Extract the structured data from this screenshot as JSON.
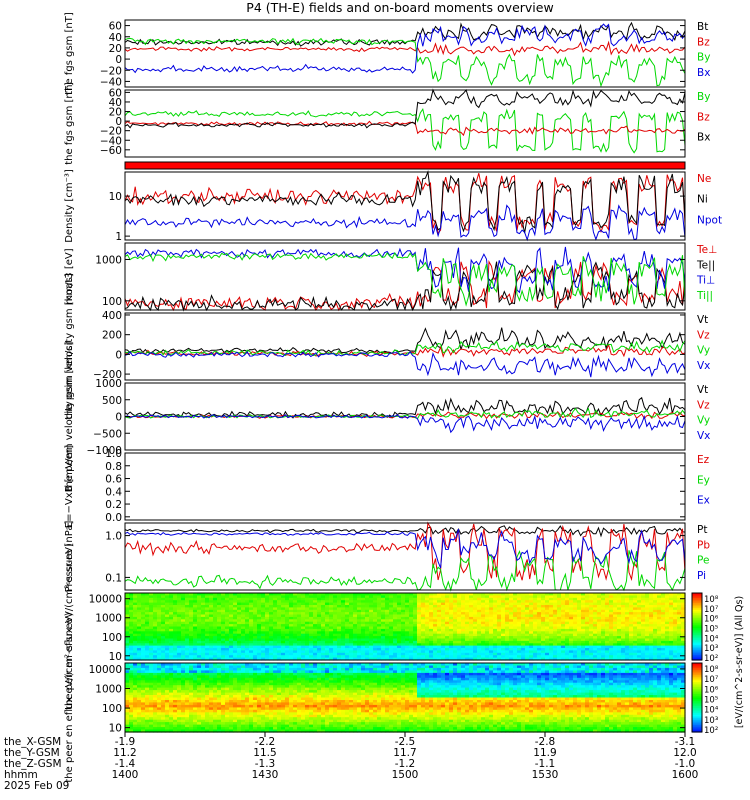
{
  "title": "P4 (TH-E) fields and on-board moments overview",
  "footer": {
    "row_labels": [
      "the_X-GSM",
      "the_Y-GSM",
      "the_Z-GSM",
      "hhmm",
      "2025 Feb 09"
    ],
    "columns": [
      {
        "x": "-1.9",
        "y": "11.2",
        "z": "-1.4",
        "t": "1400"
      },
      {
        "x": "-2.2",
        "y": "11.5",
        "z": "-1.3",
        "t": "1430"
      },
      {
        "x": "-2.5",
        "y": "11.7",
        "z": "-1.2",
        "t": "1500"
      },
      {
        "x": "-2.8",
        "y": "11.9",
        "z": "-1.1",
        "t": "1530"
      },
      {
        "x": "-3.1",
        "y": "12.0",
        "z": "-1.0",
        "t": "1600"
      }
    ]
  },
  "colorbar": {
    "label": "[eV/(cm^2-s-sr-eV)] (All Qs)",
    "ticks_top": [
      "10⁸",
      "10⁷",
      "10⁶",
      "10⁵",
      "10⁴",
      "10³",
      "10²"
    ],
    "ticks_bottom": [
      "10⁸",
      "10⁷",
      "10⁶",
      "10⁵",
      "10⁴",
      "10³",
      "10²"
    ]
  },
  "colors": {
    "black": "#000000",
    "red": "#e00000",
    "green": "#00d800",
    "blue": "#0000e0"
  },
  "chart_data": [
    {
      "type": "line",
      "ylabel": "the fgs gsm [nT]",
      "ylim": [
        -50,
        70
      ],
      "ticks": [
        {
          "v": 60,
          "t": "60"
        },
        {
          "v": 40,
          "t": "40"
        },
        {
          "v": 20,
          "t": "20"
        },
        {
          "v": 0,
          "t": "0"
        },
        {
          "v": -20,
          "t": "−20"
        },
        {
          "v": -40,
          "t": "−40"
        }
      ],
      "series": [
        {
          "name": "Bt",
          "color": "#000000",
          "base": 30,
          "noise": 4,
          "burstBase": 45,
          "burstAlt": 55,
          "burstNoise": 8
        },
        {
          "name": "Bz",
          "color": "#e00000",
          "base": 18,
          "noise": 3,
          "burstBase": 15,
          "burstAlt": 20,
          "burstNoise": 6
        },
        {
          "name": "By",
          "color": "#00d800",
          "base": 32,
          "noise": 4,
          "burstBase": -5,
          "burstAlt": -35,
          "burstNoise": 10
        },
        {
          "name": "Bx",
          "color": "#0000e0",
          "base": -18,
          "noise": 5,
          "burstBase": 35,
          "burstAlt": 50,
          "burstNoise": 10
        }
      ]
    },
    {
      "type": "line",
      "ylabel": "the fgs gsm [nT]",
      "ylim": [
        -75,
        65
      ],
      "ticks": [
        {
          "v": 60,
          "t": "60"
        },
        {
          "v": 40,
          "t": "40"
        },
        {
          "v": 20,
          "t": "20"
        },
        {
          "v": 0,
          "t": "0"
        },
        {
          "v": -20,
          "t": "−20"
        },
        {
          "v": -40,
          "t": "−40"
        },
        {
          "v": -60,
          "t": "−60"
        }
      ],
      "series": [
        {
          "name": "By",
          "color": "#00d800",
          "base": 15,
          "noise": 5,
          "burstBase": 10,
          "burstAlt": -55,
          "burstNoise": 10
        },
        {
          "name": "Bz",
          "color": "#e00000",
          "base": -5,
          "noise": 3,
          "burstBase": -20,
          "burstAlt": -20,
          "burstNoise": 6
        },
        {
          "name": "Bx",
          "color": "#000000",
          "base": -8,
          "noise": 4,
          "burstBase": 40,
          "burstAlt": 55,
          "burstNoise": 10
        }
      ]
    },
    {
      "type": "bar",
      "ylabel": "",
      "ylim": [
        0,
        1
      ],
      "ticks": [],
      "series": [],
      "note": "red status band"
    },
    {
      "type": "line",
      "ylabel": "Density [cm⁻³]",
      "ylim": [
        0.8,
        40
      ],
      "log": true,
      "ticks": [
        {
          "v": 10,
          "t": "10"
        },
        {
          "v": 1,
          "t": "1"
        }
      ],
      "series": [
        {
          "name": "Ne",
          "color": "#e00000",
          "base": 10,
          "noise": 0.15,
          "burstBase": 20,
          "burstAlt": 2,
          "burstNoise": 0.2
        },
        {
          "name": "Ni",
          "color": "#000000",
          "base": 8,
          "noise": 0.12,
          "burstBase": 20,
          "burstAlt": 2,
          "burstNoise": 0.2
        },
        {
          "name": "Npot",
          "color": "#0000e0",
          "base": 2.2,
          "noise": 0.1,
          "burstBase": 3.5,
          "burstAlt": 1.2,
          "burstNoise": 0.15
        }
      ]
    },
    {
      "type": "line",
      "ylabel": "moat3 [eV]",
      "ylim": [
        60,
        2500
      ],
      "log": true,
      "ticks": [
        {
          "v": 1000,
          "t": "1000"
        },
        {
          "v": 100,
          "t": "100"
        }
      ],
      "series": [
        {
          "name": "Te⊥",
          "color": "#e00000",
          "base": 90,
          "noise": 0.15,
          "burstBase": 120,
          "burstAlt": 500,
          "burstNoise": 0.25
        },
        {
          "name": "Te||",
          "color": "#000000",
          "base": 80,
          "noise": 0.15,
          "burstBase": 110,
          "burstAlt": 450,
          "burstNoise": 0.25
        },
        {
          "name": "Ti⊥",
          "color": "#0000e0",
          "base": 1400,
          "noise": 0.08,
          "burstBase": 900,
          "burstAlt": 300,
          "burstNoise": 0.25
        },
        {
          "name": "Ti||",
          "color": "#00d800",
          "base": 1200,
          "noise": 0.08,
          "burstBase": 600,
          "burstAlt": 150,
          "burstNoise": 0.25
        }
      ]
    },
    {
      "type": "line",
      "ylabel": "the peim velocity gsm [km/s]",
      "ylim": [
        -260,
        420
      ],
      "ticks": [
        {
          "v": 400,
          "t": "400"
        },
        {
          "v": 200,
          "t": "200"
        },
        {
          "v": 0,
          "t": "0"
        },
        {
          "v": -200,
          "t": "−200"
        }
      ],
      "series": [
        {
          "name": "Vt",
          "color": "#000000",
          "base": 40,
          "noise": 20,
          "burstBase": 180,
          "burstAlt": 120,
          "burstNoise": 60
        },
        {
          "name": "Vz",
          "color": "#e00000",
          "base": 10,
          "noise": 20,
          "burstBase": 20,
          "burstAlt": 40,
          "burstNoise": 40
        },
        {
          "name": "Vy",
          "color": "#00d800",
          "base": 15,
          "noise": 20,
          "burstBase": 60,
          "burstAlt": 90,
          "burstNoise": 40
        },
        {
          "name": "Vx",
          "color": "#0000e0",
          "base": 0,
          "noise": 20,
          "burstBase": -150,
          "burstAlt": -80,
          "burstNoise": 60
        }
      ]
    },
    {
      "type": "line",
      "ylabel": "the peem velocity gsm [km/s]",
      "ylim": [
        -1000,
        1000
      ],
      "ticks": [
        {
          "v": 1000,
          "t": "1000"
        },
        {
          "v": 500,
          "t": "500"
        },
        {
          "v": 0,
          "t": "0"
        },
        {
          "v": -500,
          "t": "−500"
        },
        {
          "v": -1000,
          "t": "−1000"
        }
      ],
      "series": [
        {
          "name": "Vt",
          "color": "#000000",
          "base": 60,
          "noise": 70,
          "burstBase": 300,
          "burstAlt": 200,
          "burstNoise": 180
        },
        {
          "name": "Vz",
          "color": "#e00000",
          "base": 0,
          "noise": 40,
          "burstBase": 50,
          "burstAlt": 50,
          "burstNoise": 90
        },
        {
          "name": "Vy",
          "color": "#00d800",
          "base": 0,
          "noise": 40,
          "burstBase": 80,
          "burstAlt": 80,
          "burstNoise": 100
        },
        {
          "name": "Vx",
          "color": "#0000e0",
          "base": 0,
          "noise": 40,
          "burstBase": -200,
          "burstAlt": -150,
          "burstNoise": 200
        }
      ]
    },
    {
      "type": "line",
      "ylabel": "E=−VxB [mV/m]",
      "ylim": [
        -0.05,
        1.0
      ],
      "ticks": [
        {
          "v": 1.0,
          "t": "1.0"
        },
        {
          "v": 0.8,
          "t": "0.8"
        },
        {
          "v": 0.6,
          "t": "0.6"
        },
        {
          "v": 0.4,
          "t": "0.4"
        },
        {
          "v": 0.2,
          "t": "0.2"
        },
        {
          "v": 0.0,
          "t": "0.0"
        }
      ],
      "series": [
        {
          "name": "Ez",
          "color": "#e00000",
          "empty": true
        },
        {
          "name": "Ey",
          "color": "#00d800",
          "empty": true
        },
        {
          "name": "Ex",
          "color": "#0000e0",
          "empty": true
        }
      ]
    },
    {
      "type": "line",
      "ylabel": "Pressure [nPa]",
      "ylim": [
        0.05,
        2.0
      ],
      "log": true,
      "ticks": [
        {
          "v": 1.0,
          "t": "1.0"
        },
        {
          "v": 0.1,
          "t": "0.1"
        }
      ],
      "series": [
        {
          "name": "Pt",
          "color": "#000000",
          "base": 1.3,
          "noise": 0.03,
          "burstBase": 1.4,
          "burstAlt": 1.2,
          "burstNoise": 0.08
        },
        {
          "name": "Pb",
          "color": "#e00000",
          "base": 0.5,
          "noise": 0.1,
          "burstBase": 1.0,
          "burstAlt": 0.15,
          "burstNoise": 0.25
        },
        {
          "name": "Pe",
          "color": "#00d800",
          "base": 0.08,
          "noise": 0.1,
          "burstBase": 0.07,
          "burstAlt": 0.25,
          "burstNoise": 0.2
        },
        {
          "name": "Pi",
          "color": "#0000e0",
          "base": 1.1,
          "noise": 0.03,
          "burstBase": 0.7,
          "burstAlt": 0.3,
          "burstNoise": 0.2
        }
      ]
    },
    {
      "type": "heatmap",
      "ylabel": "the peir en eflux eV/(cm²-s-sr-eV)",
      "ylim": [
        6,
        20000
      ],
      "log": true,
      "ticks": [
        {
          "v": 10000,
          "t": "10000"
        },
        {
          "v": 1000,
          "t": "1000"
        },
        {
          "v": 100,
          "t": "100"
        },
        {
          "v": 10,
          "t": "10"
        }
      ],
      "series": []
    },
    {
      "type": "heatmap",
      "ylabel": "the peer en eflux eV/(cm²-s-sr-eV)",
      "ylim": [
        6,
        20000
      ],
      "log": true,
      "ticks": [
        {
          "v": 10000,
          "t": "10000"
        },
        {
          "v": 1000,
          "t": "1000"
        },
        {
          "v": 100,
          "t": "100"
        },
        {
          "v": 10,
          "t": "10"
        }
      ],
      "series": []
    }
  ]
}
